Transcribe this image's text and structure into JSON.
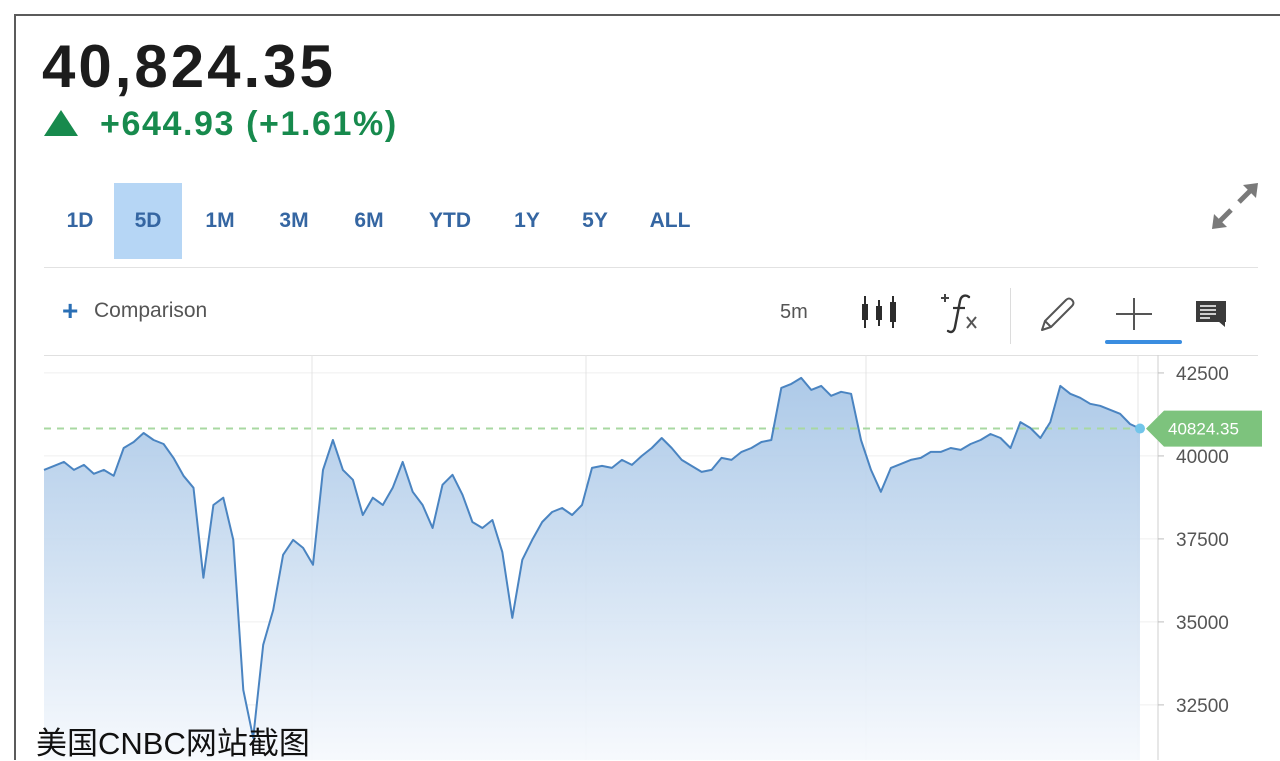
{
  "quote": {
    "price": "40,824.35",
    "change": "+644.93 (+1.61%)",
    "direction_icon": "triangle-up-icon",
    "change_color": "#178a4d"
  },
  "range_tabs": {
    "items": [
      "1D",
      "5D",
      "1M",
      "3M",
      "6M",
      "YTD",
      "1Y",
      "5Y",
      "ALL"
    ],
    "selected": "5D"
  },
  "expand_icon": "expand-arrows-icon",
  "toolbar": {
    "comparison_icon": "plus-icon",
    "comparison_label": "Comparison",
    "interval_label": "5m",
    "tool_icons": [
      "candlestick-icon",
      "fx-indicators-icon",
      "pencil-icon",
      "crosshair-icon",
      "comment-icon"
    ],
    "active_tool": "crosshair-icon"
  },
  "chart_data": {
    "type": "area",
    "values": [
      39580,
      39700,
      39820,
      39580,
      39730,
      39460,
      39580,
      39400,
      40240,
      40420,
      40690,
      40480,
      40360,
      39940,
      39400,
      39040,
      36330,
      38520,
      38740,
      37470,
      32950,
      31510,
      34310,
      35360,
      37020,
      37470,
      37230,
      36720,
      39580,
      40480,
      39580,
      39280,
      38220,
      38740,
      38520,
      39040,
      39820,
      38920,
      38520,
      37830,
      39130,
      39430,
      38830,
      38010,
      37830,
      38070,
      37110,
      35120,
      36870,
      37470,
      38010,
      38310,
      38430,
      38220,
      38520,
      39640,
      39700,
      39640,
      39880,
      39730,
      40000,
      40240,
      40540,
      40240,
      39880,
      39700,
      39520,
      39580,
      39940,
      39880,
      40120,
      40240,
      40420,
      40480,
      42050,
      42170,
      42350,
      41990,
      42110,
      41810,
      41930,
      41870,
      40480,
      39580,
      38920,
      39640,
      39760,
      39880,
      39940,
      40120,
      40120,
      40240,
      40180,
      40360,
      40480,
      40660,
      40540,
      40240,
      41020,
      40840,
      40540,
      41020,
      42110,
      41870,
      41750,
      41570,
      41510,
      41390,
      41270,
      40960,
      40824.35
    ],
    "y_ticks": [
      42500,
      40000,
      37500,
      35000,
      32500
    ],
    "ylim": [
      30840,
      43040
    ],
    "last_value": 40824.35,
    "last_value_label": "40824.35",
    "grid": true
  },
  "caption": "美国CNBC网站截图",
  "colors": {
    "accent": "#2a6fb5",
    "tab_text": "#3566a2",
    "selected_tab_bg": "#b6d6f5",
    "line": "#4a84c1",
    "area_top": "#a6c5e6",
    "area_bottom": "#f6f9fd",
    "dashed_line": "#a8d8a2",
    "badge": "#7dc37d",
    "marker": "#72c5ea",
    "active_underline": "#3a8de0"
  }
}
